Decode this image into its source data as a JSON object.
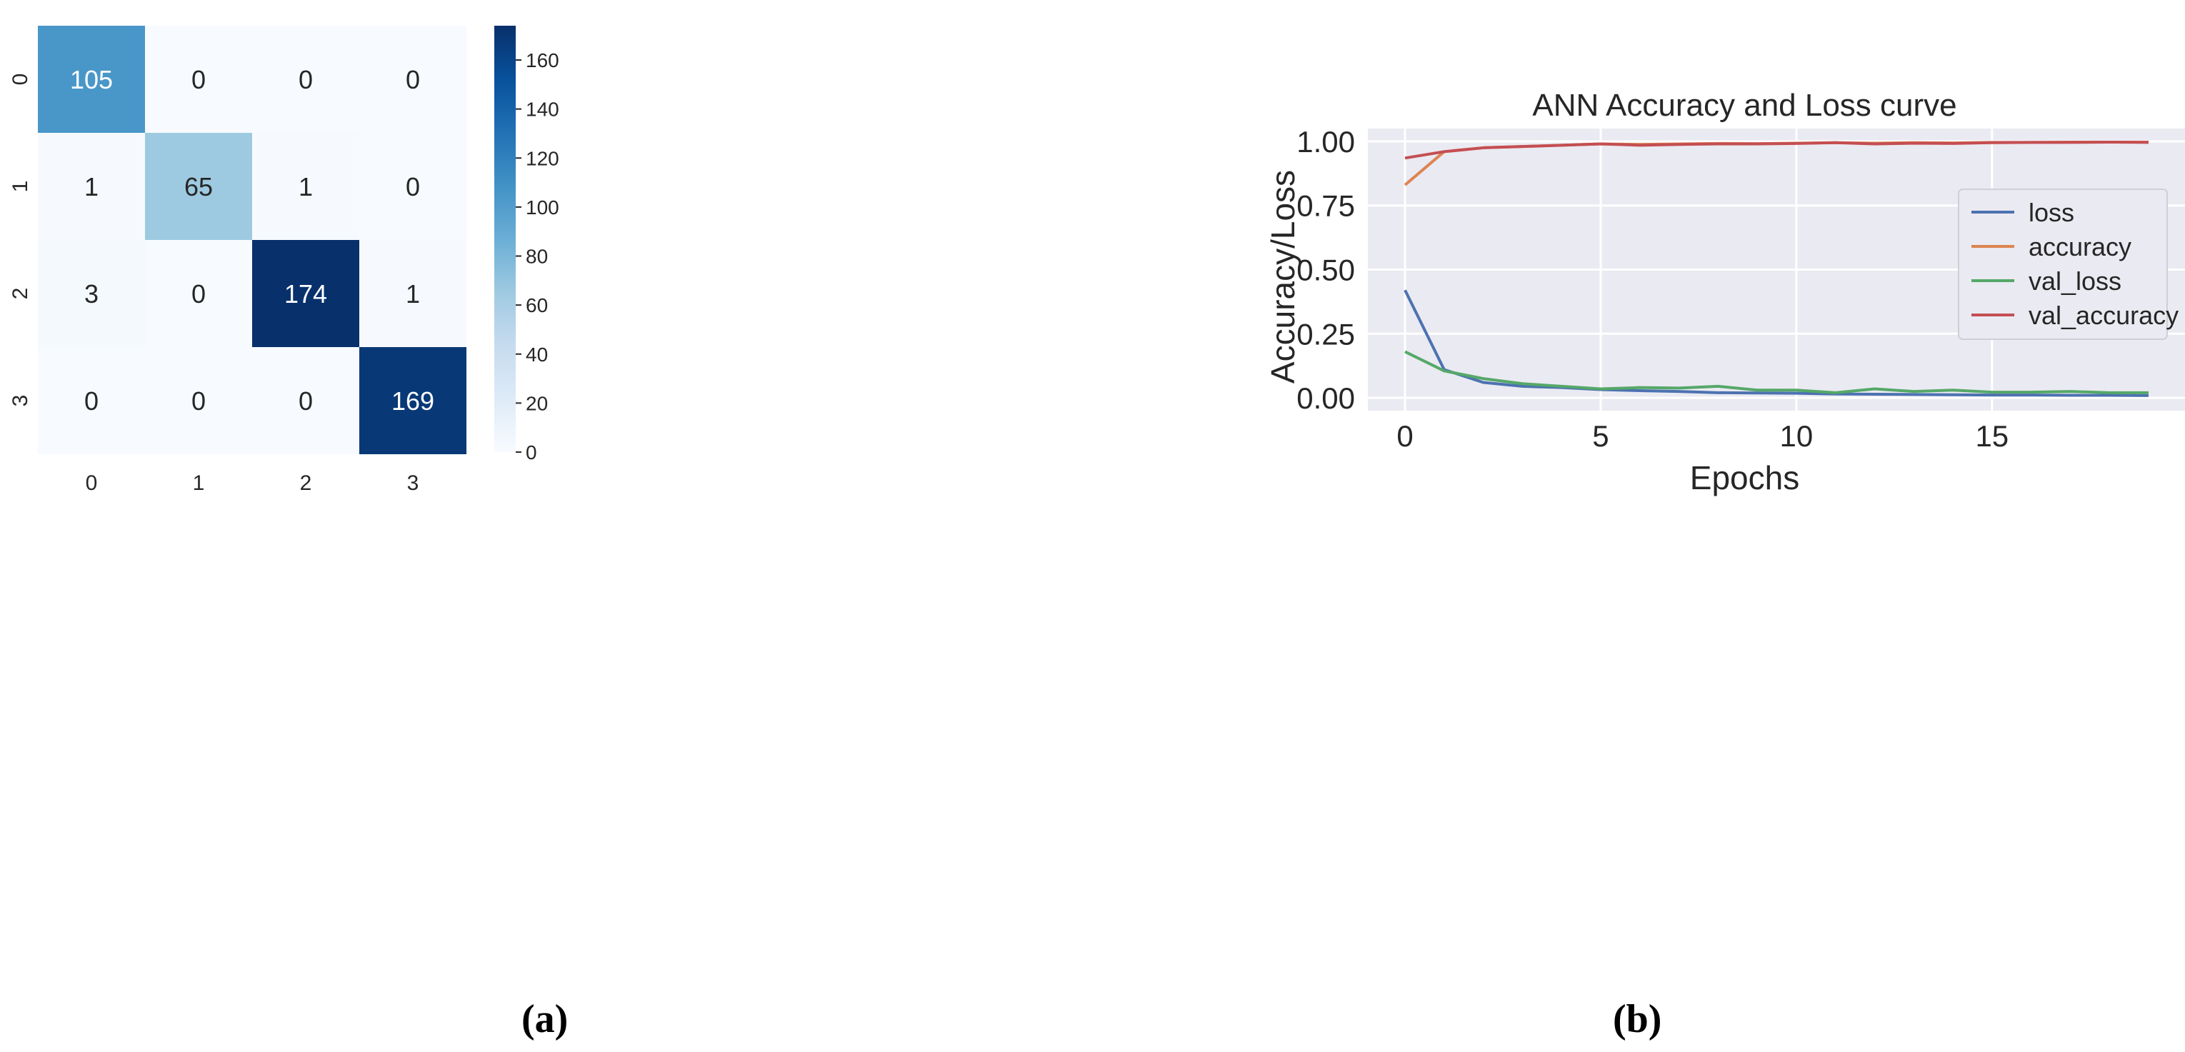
{
  "panels": {
    "a_label": "(a)",
    "b_label": "(b)"
  },
  "chart_data": [
    {
      "type": "heatmap",
      "title": "",
      "row_labels": [
        "0",
        "1",
        "2",
        "3"
      ],
      "col_labels": [
        "0",
        "1",
        "2",
        "3"
      ],
      "values": [
        [
          105,
          0,
          0,
          0
        ],
        [
          1,
          65,
          1,
          0
        ],
        [
          3,
          0,
          174,
          1
        ],
        [
          0,
          0,
          0,
          169
        ]
      ],
      "value_range": [
        0,
        174
      ],
      "colormap": "Blues",
      "colorbar_ticks": [
        "0",
        "20",
        "40",
        "60",
        "80",
        "100",
        "120",
        "140",
        "160"
      ],
      "colorbar_tick_values": [
        0,
        20,
        40,
        60,
        80,
        100,
        120,
        140,
        160
      ]
    },
    {
      "type": "line",
      "title": "ANN Accuracy and Loss curve",
      "xlabel": "Epochs",
      "ylabel": "Accuracy/Loss",
      "x": [
        0,
        1,
        2,
        3,
        4,
        5,
        6,
        7,
        8,
        9,
        10,
        11,
        12,
        13,
        14,
        15,
        16,
        17,
        18,
        19
      ],
      "xlim": [
        -0.95,
        19.95
      ],
      "ylim": [
        -0.05,
        1.05
      ],
      "xticks": [
        0,
        5,
        10,
        15
      ],
      "xtick_labels": [
        "0",
        "5",
        "10",
        "15"
      ],
      "yticks": [
        0.0,
        0.25,
        0.5,
        0.75,
        1.0
      ],
      "ytick_labels": [
        "0.00",
        "0.25",
        "0.50",
        "0.75",
        "1.00"
      ],
      "grid": true,
      "legend_position": "center-right",
      "series": [
        {
          "name": "loss",
          "color": "#4c72b0",
          "values": [
            0.42,
            0.11,
            0.06,
            0.045,
            0.04,
            0.032,
            0.028,
            0.025,
            0.02,
            0.019,
            0.018,
            0.015,
            0.014,
            0.013,
            0.012,
            0.011,
            0.011,
            0.01,
            0.01,
            0.009
          ]
        },
        {
          "name": "accuracy",
          "color": "#dd8452",
          "values": [
            0.83,
            0.96,
            0.975,
            0.98,
            0.985,
            0.99,
            0.988,
            0.99,
            0.992,
            0.991,
            0.993,
            0.995,
            0.993,
            0.995,
            0.994,
            0.996,
            0.996,
            0.997,
            0.997,
            0.997
          ]
        },
        {
          "name": "val_loss",
          "color": "#55a868",
          "values": [
            0.18,
            0.105,
            0.075,
            0.055,
            0.045,
            0.035,
            0.04,
            0.038,
            0.045,
            0.03,
            0.03,
            0.02,
            0.035,
            0.025,
            0.03,
            0.022,
            0.022,
            0.025,
            0.02,
            0.02
          ]
        },
        {
          "name": "val_accuracy",
          "color": "#c44e52",
          "values": [
            0.935,
            0.96,
            0.975,
            0.98,
            0.985,
            0.99,
            0.985,
            0.988,
            0.99,
            0.99,
            0.992,
            0.995,
            0.99,
            0.993,
            0.992,
            0.995,
            0.996,
            0.996,
            0.997,
            0.996
          ]
        }
      ]
    }
  ]
}
